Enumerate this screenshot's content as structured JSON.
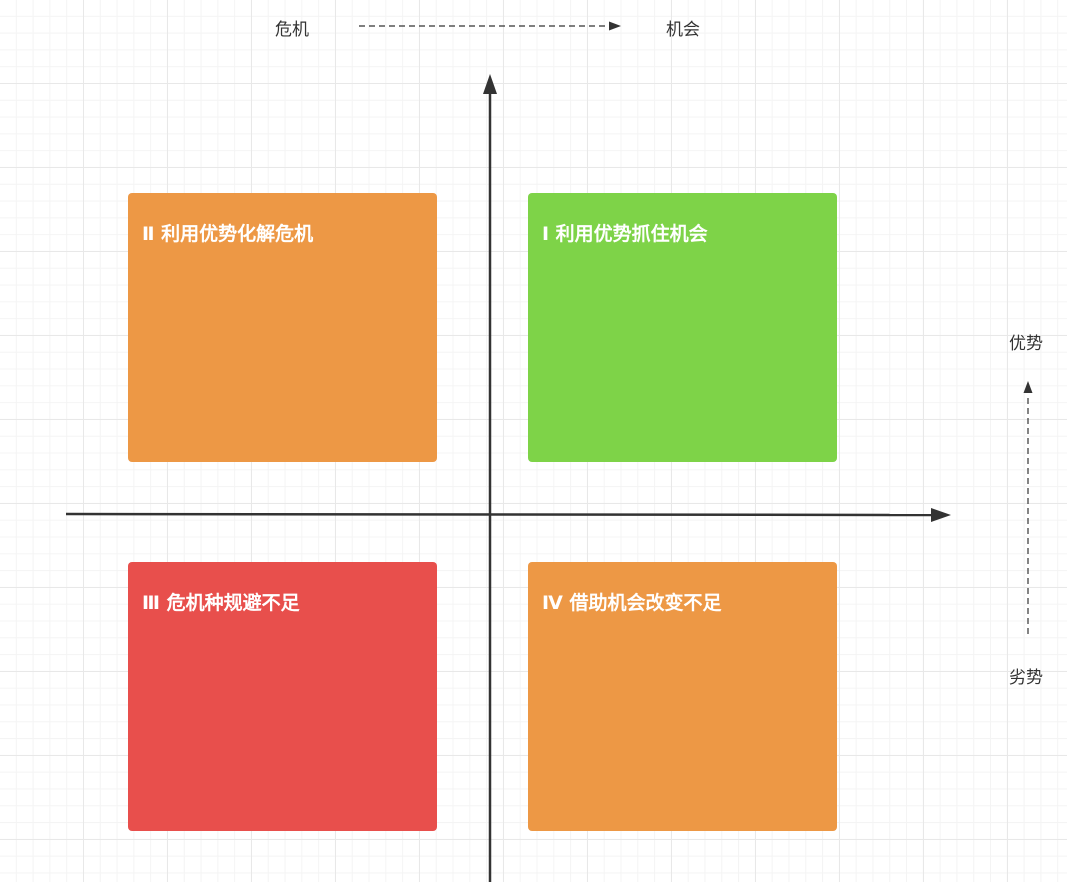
{
  "top_legend": {
    "left_label": "危机",
    "right_label": "机会"
  },
  "side_legend": {
    "top_label": "优势",
    "bottom_label": "劣势"
  },
  "quadrants": {
    "q1": {
      "title": "Ⅰ 利用优势抓住机会",
      "color": "#7ed348"
    },
    "q2": {
      "title": "Ⅱ 利用优势化解危机",
      "color": "#ed9845"
    },
    "q3": {
      "title": "Ⅲ 危机种规避不足",
      "color": "#e84f4c"
    },
    "q4": {
      "title": "Ⅳ 借助机会改变不足",
      "color": "#ed9845"
    }
  },
  "colors": {
    "axis": "#333333",
    "text": "#333333"
  }
}
